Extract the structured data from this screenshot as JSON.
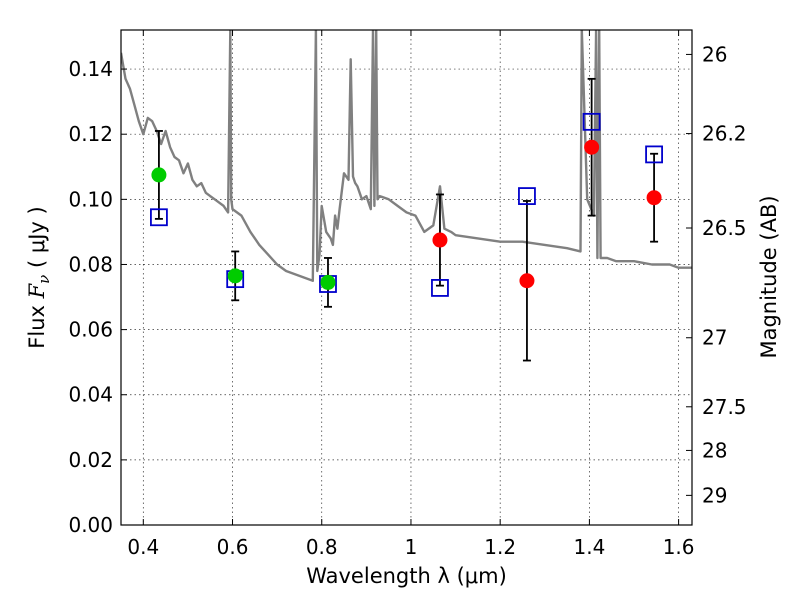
{
  "chart_data": {
    "type": "scatter",
    "xlabel": "Wavelength  λ (μm)",
    "ylabel": "Flux  F_ν  ( μJy )",
    "ylabel_right": "Magnitude (AB)",
    "xlim": [
      0.35,
      1.63
    ],
    "ylim": [
      0.0,
      0.152
    ],
    "x_ticks": [
      0.4,
      0.6,
      0.8,
      1.0,
      1.2,
      1.4,
      1.6
    ],
    "x_tick_labels": [
      "0.4",
      "0.6",
      "0.8",
      "1",
      "1.2",
      "1.4",
      "1.6"
    ],
    "y_ticks": [
      0.0,
      0.02,
      0.04,
      0.06,
      0.08,
      0.1,
      0.12,
      0.14
    ],
    "y_tick_labels": [
      "0.00",
      "0.02",
      "0.04",
      "0.06",
      "0.08",
      "0.10",
      "0.12",
      "0.14"
    ],
    "right_axis_ticks": [
      {
        "label": "26",
        "flux": 0.1445
      },
      {
        "label": "26.2",
        "flux": 0.1202
      },
      {
        "label": "26.5",
        "flux": 0.0912
      },
      {
        "label": "27",
        "flux": 0.0575
      },
      {
        "label": "27.5",
        "flux": 0.0363
      },
      {
        "label": "28",
        "flux": 0.0229
      },
      {
        "label": "29",
        "flux": 0.0091
      }
    ],
    "grid": true,
    "colors": {
      "spectrum": "#808080",
      "optical_points": "#00cc00",
      "nir_points": "#ff0000",
      "model_boxes": "#0000cc",
      "error_bars": "#000000"
    },
    "series": [
      {
        "kind": "observed-optical",
        "x": [
          0.435,
          0.606,
          0.814
        ],
        "y": [
          0.1075,
          0.0765,
          0.0745
        ],
        "yerr": [
          0.0135,
          0.0075,
          0.0075
        ]
      },
      {
        "kind": "observed-nir",
        "x": [
          1.065,
          1.26,
          1.405,
          1.545
        ],
        "y": [
          0.0875,
          0.075,
          0.116,
          0.1005
        ],
        "yerr": [
          0.014,
          0.0245,
          0.021,
          0.0135
        ]
      },
      {
        "kind": "model-photometry",
        "x": [
          0.435,
          0.606,
          0.814,
          1.065,
          1.26,
          1.405,
          1.545
        ],
        "y": [
          0.0945,
          0.0755,
          0.074,
          0.0728,
          0.101,
          0.1238,
          0.1138
        ]
      },
      {
        "kind": "model-spectrum",
        "x": [
          0.35,
          0.36,
          0.37,
          0.38,
          0.39,
          0.4,
          0.41,
          0.42,
          0.43,
          0.44,
          0.45,
          0.46,
          0.47,
          0.48,
          0.49,
          0.5,
          0.51,
          0.52,
          0.53,
          0.54,
          0.55,
          0.56,
          0.57,
          0.58,
          0.59,
          0.595,
          0.597,
          0.6,
          0.62,
          0.64,
          0.66,
          0.68,
          0.7,
          0.72,
          0.74,
          0.76,
          0.78,
          0.787,
          0.79,
          0.795,
          0.8,
          0.81,
          0.82,
          0.825,
          0.83,
          0.835,
          0.84,
          0.85,
          0.86,
          0.865,
          0.87,
          0.875,
          0.88,
          0.89,
          0.9,
          0.91,
          0.915,
          0.918,
          0.922,
          0.925,
          0.93,
          0.95,
          0.97,
          0.99,
          1.01,
          1.03,
          1.05,
          1.065,
          1.075,
          1.09,
          1.1,
          1.15,
          1.2,
          1.25,
          1.3,
          1.35,
          1.38,
          1.383,
          1.395,
          1.41,
          1.415,
          1.418,
          1.422,
          1.425,
          1.44,
          1.46,
          1.5,
          1.54,
          1.55,
          1.58,
          1.6,
          1.63
        ],
        "y": [
          0.145,
          0.137,
          0.134,
          0.129,
          0.124,
          0.12,
          0.125,
          0.124,
          0.121,
          0.117,
          0.121,
          0.116,
          0.113,
          0.112,
          0.108,
          0.111,
          0.106,
          0.104,
          0.105,
          0.102,
          0.101,
          0.1,
          0.099,
          0.098,
          0.096,
          0.152,
          0.1,
          0.097,
          0.095,
          0.09,
          0.086,
          0.083,
          0.08,
          0.078,
          0.077,
          0.076,
          0.075,
          0.152,
          0.078,
          0.083,
          0.098,
          0.09,
          0.088,
          0.086,
          0.095,
          0.091,
          0.097,
          0.108,
          0.106,
          0.143,
          0.107,
          0.105,
          0.104,
          0.1,
          0.101,
          0.097,
          0.152,
          0.098,
          0.152,
          0.1,
          0.101,
          0.1,
          0.098,
          0.096,
          0.095,
          0.09,
          0.092,
          0.104,
          0.091,
          0.09,
          0.089,
          0.088,
          0.087,
          0.087,
          0.086,
          0.085,
          0.084,
          0.152,
          0.1,
          0.095,
          0.152,
          0.082,
          0.152,
          0.082,
          0.082,
          0.081,
          0.081,
          0.08,
          0.08,
          0.08,
          0.079,
          0.079
        ]
      }
    ]
  }
}
